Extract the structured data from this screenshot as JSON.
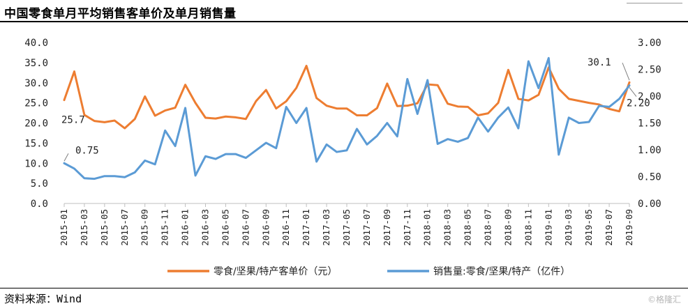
{
  "title": "中国零食单月平均销售客单价及单月销售量",
  "source": "资料来源：Wind",
  "watermark": "©格隆汇",
  "colors": {
    "price": "#ED7D31",
    "volume": "#5B9BD5"
  },
  "chart_data": {
    "type": "line",
    "x": [
      "2015-01",
      "2015-02",
      "2015-03",
      "2015-04",
      "2015-05",
      "2015-06",
      "2015-07",
      "2015-08",
      "2015-09",
      "2015-10",
      "2015-11",
      "2015-12",
      "2016-01",
      "2016-02",
      "2016-03",
      "2016-04",
      "2016-05",
      "2016-06",
      "2016-07",
      "2016-08",
      "2016-09",
      "2016-10",
      "2016-11",
      "2016-12",
      "2017-01",
      "2017-02",
      "2017-03",
      "2017-04",
      "2017-05",
      "2017-06",
      "2017-07",
      "2017-08",
      "2017-09",
      "2017-10",
      "2017-11",
      "2017-12",
      "2018-01",
      "2018-02",
      "2018-03",
      "2018-04",
      "2018-05",
      "2018-06",
      "2018-07",
      "2018-08",
      "2018-09",
      "2018-10",
      "2018-11",
      "2018-12",
      "2019-01",
      "2019-02",
      "2019-03",
      "2019-04",
      "2019-05",
      "2019-06",
      "2019-07",
      "2019-08",
      "2019-09"
    ],
    "x_tick_labels": [
      "2015-01",
      "2015-03",
      "2015-05",
      "2015-07",
      "2015-09",
      "2015-11",
      "2016-01",
      "2016-03",
      "2016-05",
      "2016-07",
      "2016-09",
      "2016-11",
      "2017-01",
      "2017-03",
      "2017-05",
      "2017-07",
      "2017-09",
      "2017-11",
      "2018-01",
      "2018-03",
      "2018-05",
      "2018-07",
      "2018-09",
      "2018-11",
      "2019-01",
      "2019-03",
      "2019-05",
      "2019-07",
      "2019-09"
    ],
    "y_left": {
      "range": [
        0,
        40
      ],
      "ticks": [
        "0.0",
        "5.0",
        "10.0",
        "15.0",
        "20.0",
        "25.0",
        "30.0",
        "35.0",
        "40.0"
      ]
    },
    "y_right": {
      "range": [
        0,
        3
      ],
      "ticks": [
        "0.00",
        "0.50",
        "1.00",
        "1.50",
        "2.00",
        "2.50",
        "3.00"
      ]
    },
    "series": [
      {
        "name": "零食/坚果/特产客单价（元）",
        "axis": "left",
        "values": [
          25.7,
          32.8,
          22.0,
          20.5,
          20.2,
          20.6,
          18.7,
          21.0,
          26.6,
          21.8,
          23.1,
          23.8,
          29.5,
          25.0,
          21.3,
          21.1,
          21.6,
          21.4,
          21.0,
          25.4,
          28.2,
          23.6,
          25.4,
          28.7,
          34.2,
          26.2,
          24.3,
          23.6,
          23.6,
          21.9,
          21.9,
          23.7,
          29.8,
          24.2,
          24.3,
          24.9,
          29.6,
          29.4,
          24.8,
          24.1,
          24.0,
          21.9,
          22.4,
          25.0,
          33.2,
          26.0,
          25.6,
          27.0,
          33.8,
          28.5,
          26.0,
          25.5,
          25.0,
          24.6,
          23.5,
          22.9,
          30.1
        ]
      },
      {
        "name": "销售量:零食/坚果/特产（亿件）",
        "axis": "right",
        "values": [
          0.75,
          0.65,
          0.47,
          0.46,
          0.51,
          0.51,
          0.49,
          0.58,
          0.8,
          0.73,
          1.36,
          1.07,
          1.78,
          0.52,
          0.88,
          0.83,
          0.92,
          0.92,
          0.85,
          0.99,
          1.13,
          1.03,
          1.8,
          1.5,
          1.78,
          0.78,
          1.1,
          0.96,
          0.99,
          1.39,
          1.1,
          1.26,
          1.5,
          1.25,
          2.32,
          1.67,
          2.3,
          1.11,
          1.2,
          1.15,
          1.22,
          1.6,
          1.34,
          1.6,
          1.79,
          1.4,
          2.65,
          2.15,
          2.71,
          0.91,
          1.6,
          1.5,
          1.52,
          1.82,
          1.8,
          1.95,
          2.2
        ]
      }
    ],
    "annotations": {
      "price_first": "25.7",
      "price_last": "30.1",
      "volume_first": "0.75",
      "volume_last": "2.20"
    },
    "legend_position": "bottom",
    "grid": false
  }
}
